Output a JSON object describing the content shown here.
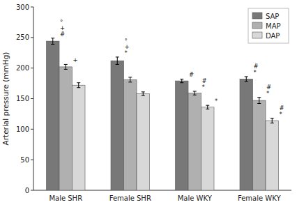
{
  "chart_data": {
    "type": "bar",
    "categories": [
      "Male SHR",
      "Female SHR",
      "Male WKY",
      "Female WKY"
    ],
    "series": [
      {
        "name": "SAP",
        "color": "#787878",
        "values": [
          244,
          212,
          179,
          182
        ],
        "errors": [
          5,
          6,
          3,
          4
        ],
        "annotations": [
          [
            "°",
            "+",
            "#"
          ],
          [
            "°",
            "+",
            "*"
          ],
          [
            "#"
          ],
          [
            "#",
            "*"
          ]
        ]
      },
      {
        "name": "MAP",
        "color": "#b0b0b0",
        "values": [
          202,
          181,
          159,
          147
        ],
        "errors": [
          4,
          4,
          3,
          5
        ],
        "annotations": [
          [
            "+"
          ],
          [],
          [
            "#",
            "*"
          ],
          [
            "#",
            "*"
          ]
        ]
      },
      {
        "name": "DAP",
        "color": "#d8d8d8",
        "values": [
          172,
          158,
          136,
          114
        ],
        "errors": [
          4,
          3,
          3,
          4
        ],
        "annotations": [
          [],
          [],
          [
            "*"
          ],
          [
            "#",
            "*"
          ]
        ]
      }
    ],
    "ylabel": "Arterial pressure (mmHg)",
    "ylim": [
      0,
      300
    ],
    "yticks": [
      0,
      50,
      100,
      150,
      200,
      250,
      300
    ],
    "legend": "upper right"
  }
}
